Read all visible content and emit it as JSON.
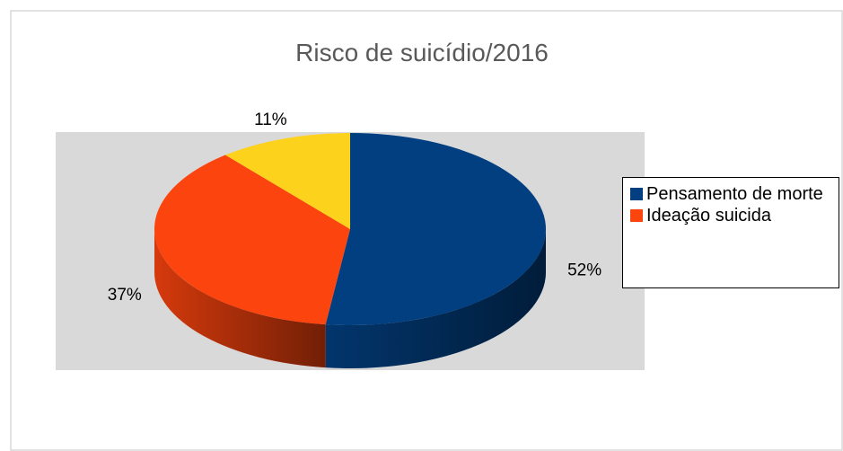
{
  "chart_data": {
    "type": "pie3d",
    "title": "Risco de suicídio/2016",
    "categories": [
      "Pensamento de morte",
      "Ideação suicida",
      null
    ],
    "values": [
      52,
      37,
      11
    ],
    "value_labels": [
      "52%",
      "37%",
      "11%"
    ],
    "colors": [
      "#023f80",
      "#fb440e",
      "#fcd21c"
    ],
    "legend": "right"
  }
}
